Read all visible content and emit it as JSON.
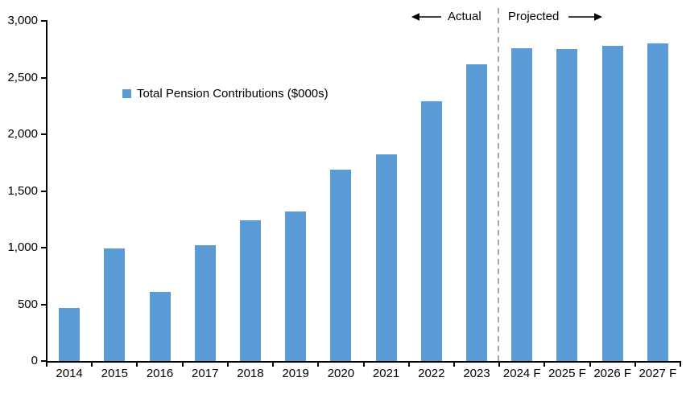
{
  "chart_data": {
    "type": "bar",
    "title": "",
    "legend": "Total Pension Contributions ($000s)",
    "categories": [
      "2014",
      "2015",
      "2016",
      "2017",
      "2018",
      "2019",
      "2020",
      "2021",
      "2022",
      "2023",
      "2024 F",
      "2025 F",
      "2026 F",
      "2027 F"
    ],
    "values": [
      470,
      990,
      610,
      1020,
      1240,
      1320,
      1690,
      1820,
      2290,
      2620,
      2760,
      2750,
      2780,
      2800
    ],
    "xlabel": "",
    "ylabel": "",
    "ylim": [
      0,
      3000
    ],
    "yticks": [
      0,
      500,
      1000,
      1500,
      2000,
      2500,
      3000
    ],
    "ytick_labels": [
      "0",
      "500",
      "1,000",
      "1,500",
      "2,000",
      "2,500",
      "3,000"
    ],
    "grid": false,
    "legend_position": "inside-top-left",
    "annotations": {
      "actual_label": "Actual",
      "projected_label": "Projected",
      "divider_between": [
        "2023",
        "2024 F"
      ]
    },
    "colors": {
      "bar": "#5B9BD5",
      "divider": "#A6A6A6",
      "axis": "#000000",
      "text": "#000000"
    }
  }
}
